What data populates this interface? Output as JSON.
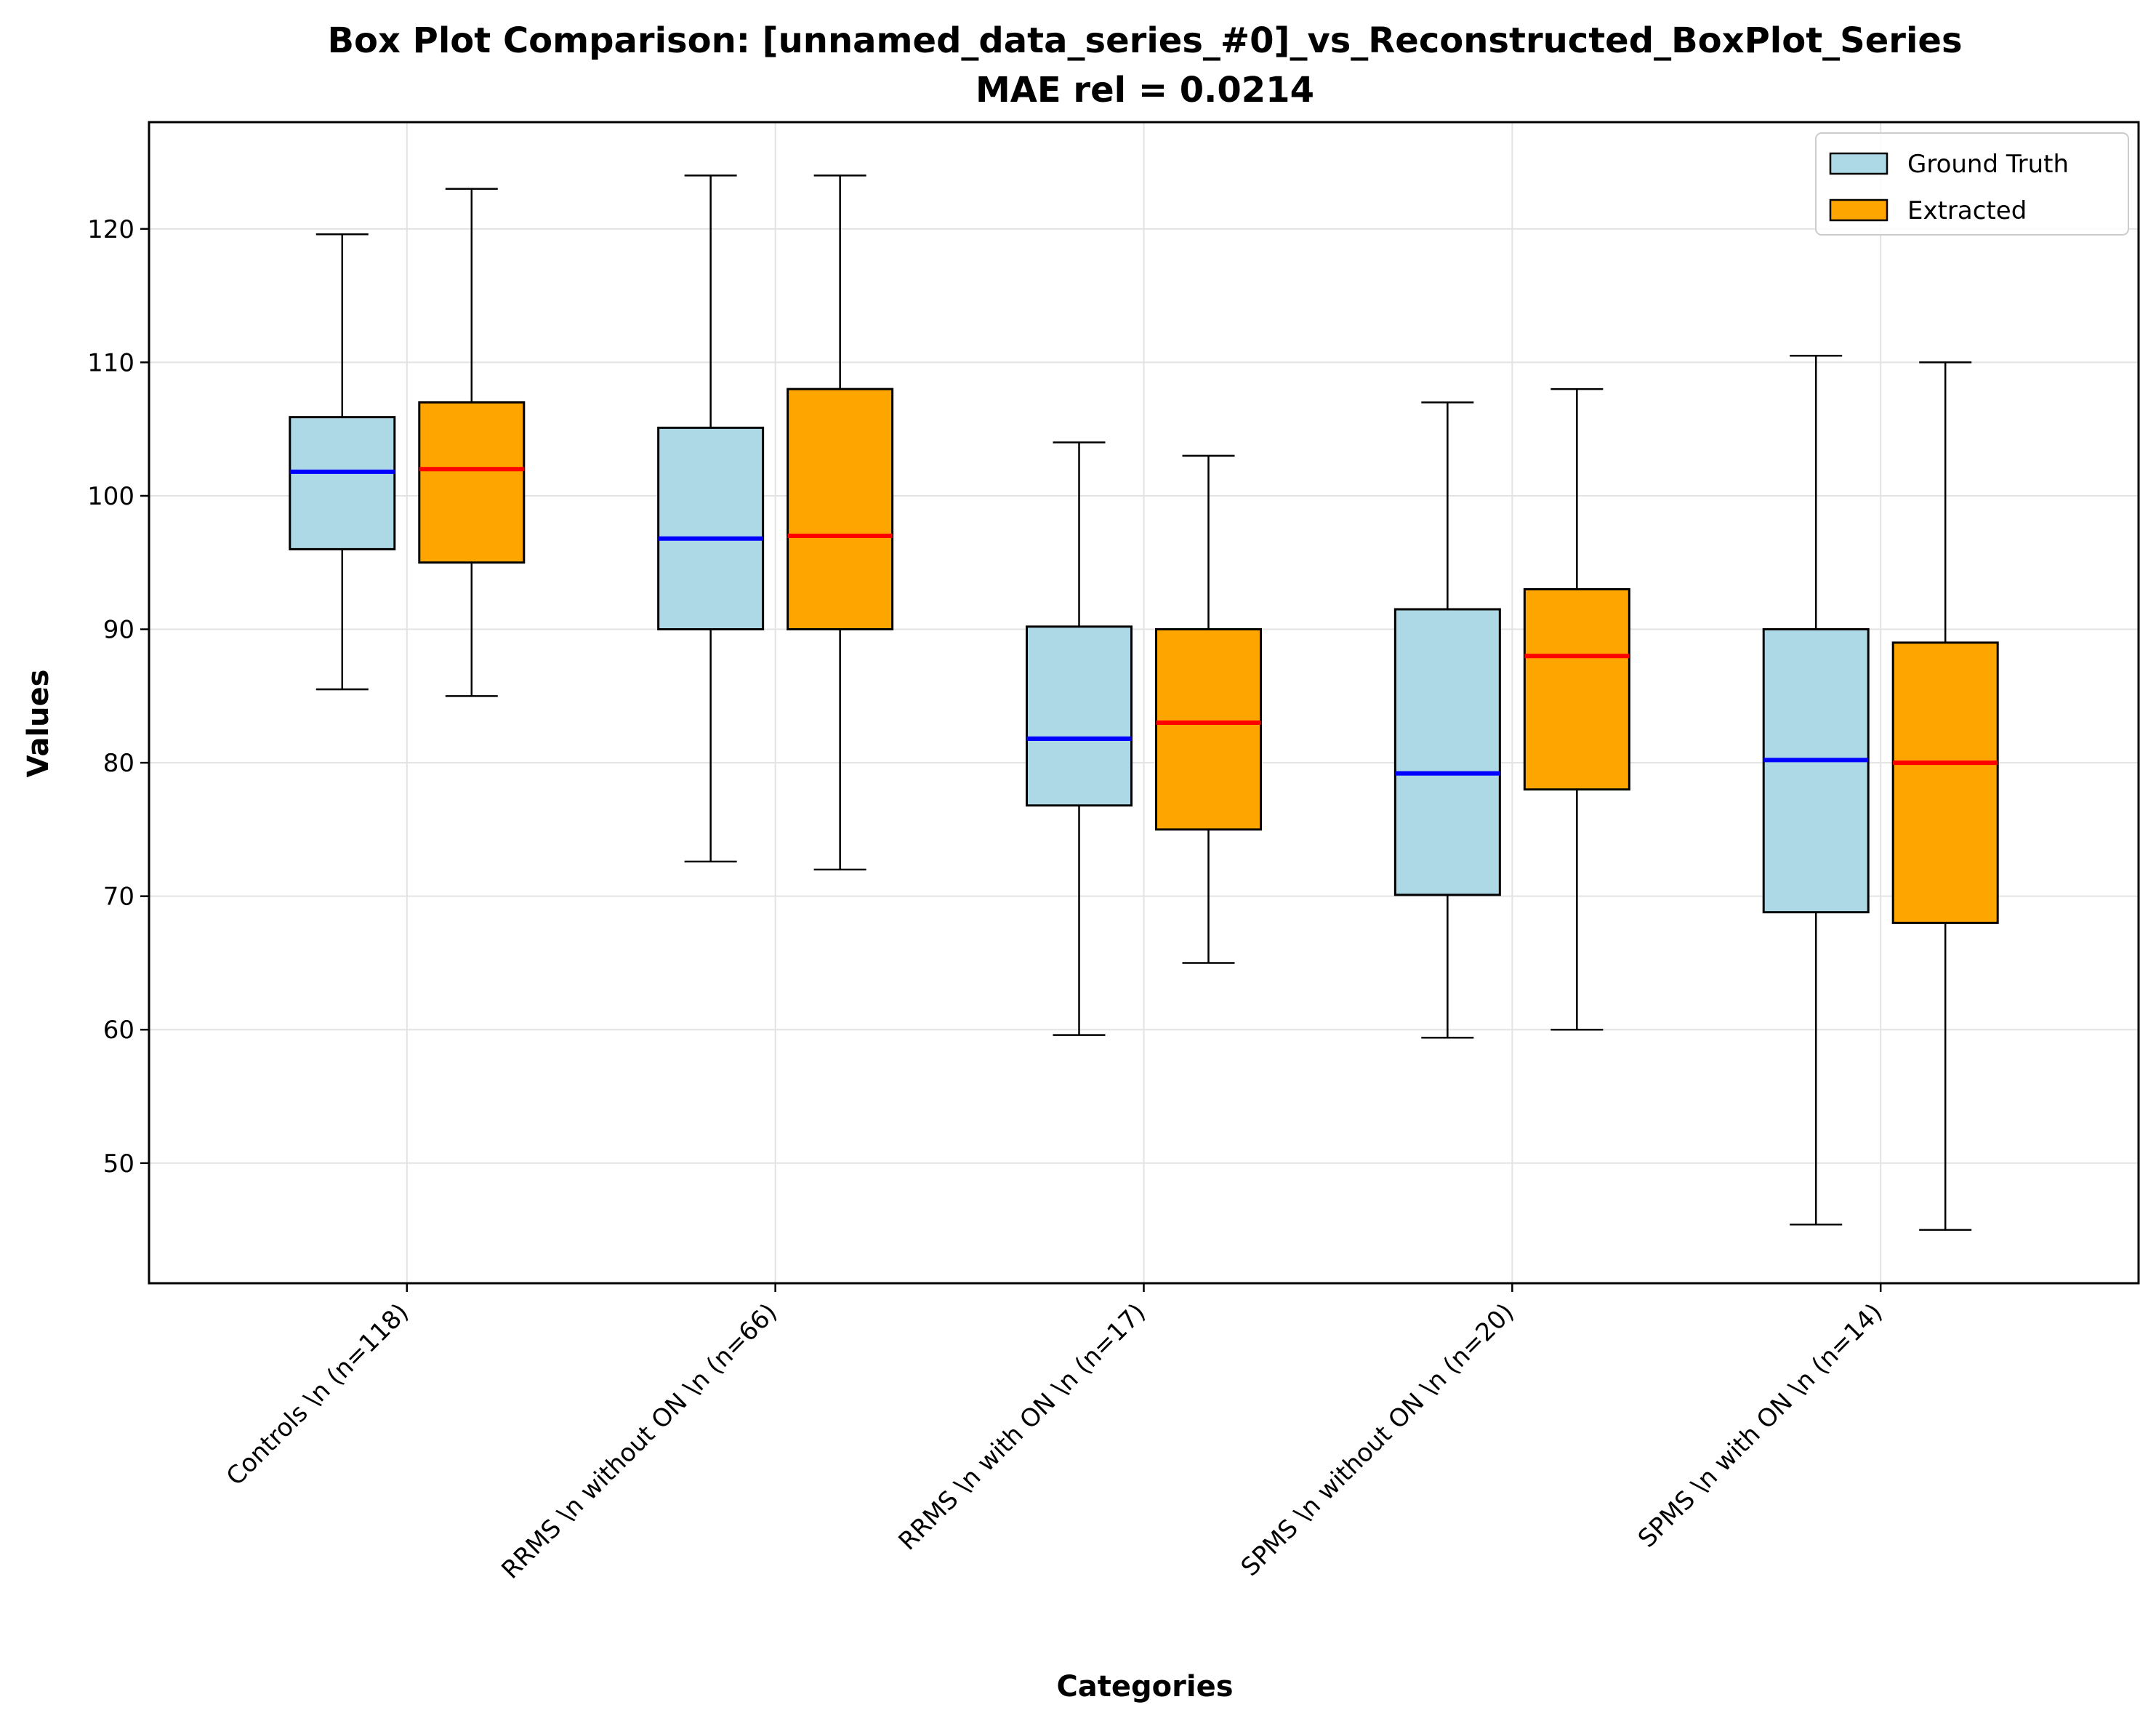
{
  "chart_data": {
    "type": "box",
    "title": "Box Plot Comparison: [unnamed_data_series_#0]_vs_Reconstructed_BoxPlot_Series",
    "subtitle": "MAE rel = 0.0214",
    "xlabel": "Categories",
    "ylabel": "Values",
    "ylim": [
      41,
      128
    ],
    "yticks": [
      50,
      60,
      70,
      80,
      90,
      100,
      110,
      120
    ],
    "grid": true,
    "legend_position": "top-right",
    "categories": [
      "Controls \\n (n=118)",
      "RRMS \\n without ON \\n (n=66)",
      "RRMS \\n with ON \\n (n=17)",
      "SPMS \\n without ON \\n (n=20)",
      "SPMS \\n with ON \\n (n=14)"
    ],
    "series": [
      {
        "name": "Ground Truth",
        "box_color": "#add8e6",
        "median_color": "#0000ff",
        "stats": [
          {
            "min": 85.5,
            "q1": 96.0,
            "median": 101.8,
            "q3": 105.9,
            "max": 119.6
          },
          {
            "min": 72.6,
            "q1": 90.0,
            "median": 96.8,
            "q3": 105.1,
            "max": 124.0
          },
          {
            "min": 59.6,
            "q1": 76.8,
            "median": 81.8,
            "q3": 90.2,
            "max": 104.0
          },
          {
            "min": 59.4,
            "q1": 70.1,
            "median": 79.2,
            "q3": 91.5,
            "max": 107.0
          },
          {
            "min": 45.4,
            "q1": 68.8,
            "median": 80.2,
            "q3": 90.0,
            "max": 110.5
          }
        ]
      },
      {
        "name": "Extracted",
        "box_color": "#ffa500",
        "median_color": "#ff0000",
        "stats": [
          {
            "min": 85.0,
            "q1": 95.0,
            "median": 102.0,
            "q3": 107.0,
            "max": 123.0
          },
          {
            "min": 72.0,
            "q1": 90.0,
            "median": 97.0,
            "q3": 108.0,
            "max": 124.0
          },
          {
            "min": 65.0,
            "q1": 75.0,
            "median": 83.0,
            "q3": 90.0,
            "max": 103.0
          },
          {
            "min": 60.0,
            "q1": 78.0,
            "median": 88.0,
            "q3": 93.0,
            "max": 108.0
          },
          {
            "min": 45.0,
            "q1": 68.0,
            "median": 80.0,
            "q3": 89.0,
            "max": 110.0
          }
        ]
      }
    ]
  }
}
